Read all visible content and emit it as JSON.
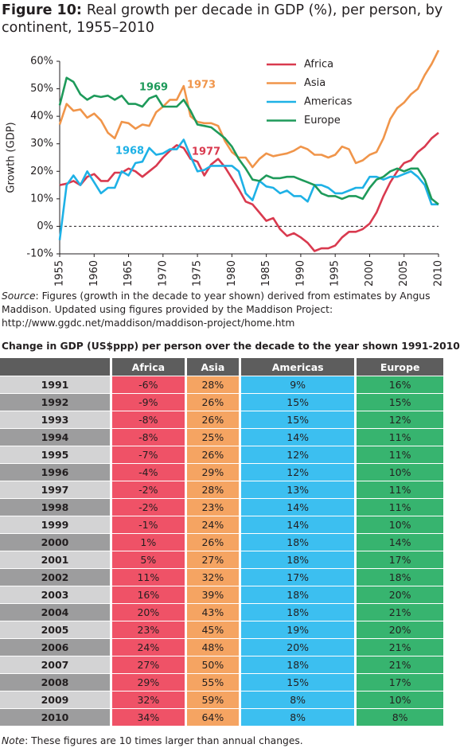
{
  "chart_data": {
    "type": "line",
    "label": "Figure 10:",
    "title": "Real growth per decade in GDP (%), per person, by continent, 1955–2010",
    "y_label": "Growth (GDP)",
    "x": [
      1955,
      1956,
      1957,
      1958,
      1959,
      1960,
      1961,
      1962,
      1963,
      1964,
      1965,
      1966,
      1967,
      1968,
      1969,
      1970,
      1971,
      1972,
      1973,
      1974,
      1975,
      1976,
      1977,
      1978,
      1979,
      1980,
      1981,
      1982,
      1983,
      1984,
      1985,
      1986,
      1987,
      1988,
      1989,
      1990,
      1991,
      1992,
      1993,
      1994,
      1995,
      1996,
      1997,
      1998,
      1999,
      2000,
      2001,
      2002,
      2003,
      2004,
      2005,
      2006,
      2007,
      2008,
      2009,
      2010
    ],
    "series": [
      {
        "name": "Africa",
        "color": "#d93a4f",
        "values": [
          15,
          15.5,
          16.5,
          15,
          18,
          19,
          16.5,
          16.5,
          19.5,
          19.5,
          21,
          20,
          18,
          20,
          22,
          25,
          27.5,
          29.5,
          28.5,
          24.5,
          23.5,
          18.5,
          22.5,
          24.5,
          21.5,
          17.5,
          13.5,
          9,
          8,
          5,
          2,
          3,
          -1,
          -3.5,
          -2.5,
          -4,
          -6,
          -9,
          -8,
          -8,
          -7,
          -4,
          -2,
          -2,
          -1,
          1,
          5,
          11,
          16,
          20,
          23,
          24,
          27,
          29,
          32,
          34
        ]
      },
      {
        "name": "Asia",
        "color": "#f0954a",
        "values": [
          37,
          44.5,
          42,
          42.5,
          39.5,
          41,
          38.5,
          34,
          32,
          38,
          37.5,
          35.5,
          37,
          36.5,
          41.5,
          43.5,
          46,
          46,
          51,
          40,
          38,
          37.5,
          37.5,
          36.5,
          31,
          27,
          25,
          25,
          21.5,
          24.5,
          26.5,
          25.5,
          26,
          26.5,
          27.5,
          29,
          28,
          26,
          26,
          25,
          26,
          29,
          28,
          23,
          24,
          26,
          27,
          32,
          39,
          43,
          45,
          48,
          50,
          55,
          59,
          64
        ]
      },
      {
        "name": "Americas",
        "color": "#1eb1e6",
        "values": [
          -5,
          15,
          18.5,
          15,
          20,
          16,
          12,
          14,
          14,
          20,
          18.5,
          23,
          23.5,
          28.5,
          26,
          26.5,
          28,
          28,
          31.5,
          25.5,
          20,
          20.5,
          22,
          22,
          22,
          22,
          20,
          12,
          9.5,
          16.5,
          14.5,
          14,
          12,
          13,
          11,
          11,
          9,
          15,
          15,
          14,
          12,
          12,
          13,
          14,
          14,
          18,
          18,
          17,
          18,
          18,
          19,
          20,
          18,
          15,
          8,
          8
        ]
      },
      {
        "name": "Europe",
        "color": "#1e9a5a",
        "values": [
          44,
          54,
          52.5,
          48,
          46,
          47.5,
          47,
          47.5,
          46,
          47.5,
          44.5,
          44.5,
          43.5,
          46.5,
          47.5,
          43.5,
          43.5,
          43.5,
          46,
          42,
          37,
          36.5,
          36,
          34,
          32,
          29,
          24.5,
          21,
          17,
          16.5,
          18.5,
          17.5,
          17.5,
          18,
          18,
          17,
          16,
          15,
          12,
          11,
          11,
          10,
          11,
          11,
          10,
          14,
          17,
          18,
          20,
          21,
          20,
          21,
          21,
          17,
          10,
          8
        ]
      }
    ],
    "annotations": [
      {
        "text": "1969",
        "color": "#1e9a5a"
      },
      {
        "text": "1973",
        "color": "#f0954a"
      },
      {
        "text": "1968",
        "color": "#1eb1e6"
      },
      {
        "text": "1977",
        "color": "#d93a4f"
      }
    ],
    "xlim": [
      1955,
      2010
    ],
    "xticks": [
      1955,
      1960,
      1965,
      1970,
      1975,
      1980,
      1985,
      1990,
      1995,
      2000,
      2005,
      2010
    ],
    "ylim": [
      -10,
      60
    ],
    "yticks": [
      {
        "value": -10,
        "label": "-10%"
      },
      {
        "value": 0,
        "label": "0%"
      },
      {
        "value": 10,
        "label": "10%"
      },
      {
        "value": 20,
        "label": "20%"
      },
      {
        "value": 30,
        "label": "30%"
      },
      {
        "value": 40,
        "label": "40%"
      },
      {
        "value": 50,
        "label": "50%"
      },
      {
        "value": 60,
        "label": "60%"
      }
    ],
    "zero_line": true,
    "legend": "top-right"
  },
  "source": {
    "label": "Source",
    "text": ": Figures (growth in the decade to year shown) derived from estimates by Angus Maddison. Updated using figures provided by the Maddison Project: http://www.ggdc.net/maddison/maddison-project/home.htm"
  },
  "table": {
    "title": "Change in GDP (US$ppp) per person over the decade to the year shown 1991-2010",
    "columns": [
      "Africa",
      "Asia",
      "Americas",
      "Europe"
    ],
    "rows": [
      [
        "1991",
        "-6%",
        "28%",
        "9%",
        "16%"
      ],
      [
        "1992",
        "-9%",
        "26%",
        "15%",
        "15%"
      ],
      [
        "1993",
        "-8%",
        "26%",
        "15%",
        "12%"
      ],
      [
        "1994",
        "-8%",
        "25%",
        "14%",
        "11%"
      ],
      [
        "1995",
        "-7%",
        "26%",
        "12%",
        "11%"
      ],
      [
        "1996",
        "-4%",
        "29%",
        "12%",
        "10%"
      ],
      [
        "1997",
        "-2%",
        "28%",
        "13%",
        "11%"
      ],
      [
        "1998",
        "-2%",
        "23%",
        "14%",
        "11%"
      ],
      [
        "1999",
        "-1%",
        "24%",
        "14%",
        "10%"
      ],
      [
        "2000",
        "1%",
        "26%",
        "18%",
        "14%"
      ],
      [
        "2001",
        "5%",
        "27%",
        "18%",
        "17%"
      ],
      [
        "2002",
        "11%",
        "32%",
        "17%",
        "18%"
      ],
      [
        "2003",
        "16%",
        "39%",
        "18%",
        "20%"
      ],
      [
        "2004",
        "20%",
        "43%",
        "18%",
        "21%"
      ],
      [
        "2005",
        "23%",
        "45%",
        "19%",
        "20%"
      ],
      [
        "2006",
        "24%",
        "48%",
        "20%",
        "21%"
      ],
      [
        "2007",
        "27%",
        "50%",
        "18%",
        "21%"
      ],
      [
        "2008",
        "29%",
        "55%",
        "15%",
        "17%"
      ],
      [
        "2009",
        "32%",
        "59%",
        "8%",
        "10%"
      ],
      [
        "2010",
        "34%",
        "64%",
        "8%",
        "8%"
      ]
    ]
  },
  "note": {
    "label": "Note",
    "text": ":  These figures are 10 times larger than annual changes."
  }
}
